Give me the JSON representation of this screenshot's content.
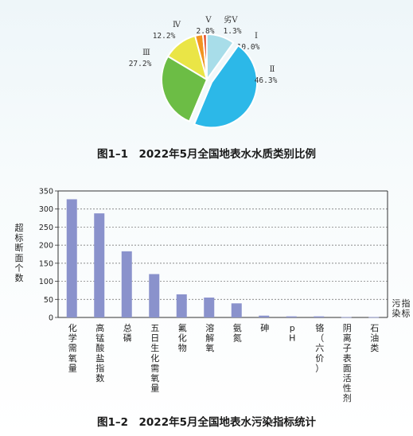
{
  "colors": {
    "pie": [
      "#a8dde9",
      "#2cb8e8",
      "#6cbd45",
      "#eae546",
      "#f29420",
      "#e2451f"
    ],
    "bar": "#8a92cc"
  },
  "chart_data": [
    {
      "type": "pie",
      "title": "图1–1　2022年5月全国地表水水质类别比例",
      "slices": [
        {
          "label": "Ⅰ",
          "value": 10.0,
          "value_label": "10.0%"
        },
        {
          "label": "Ⅱ",
          "value": 46.3,
          "value_label": "46.3%"
        },
        {
          "label": "Ⅲ",
          "value": 27.2,
          "value_label": "27.2%"
        },
        {
          "label": "Ⅳ",
          "value": 12.2,
          "value_label": "12.2%"
        },
        {
          "label": "Ⅴ",
          "value": 2.8,
          "value_label": "2.8%"
        },
        {
          "label": "劣Ⅴ",
          "value": 1.3,
          "value_label": "1.3%"
        }
      ]
    },
    {
      "type": "bar",
      "title": "图1–2　2022年5月全国地表水污染指标统计",
      "ylabel": "超标断面个数",
      "xlabel": "污染指标",
      "ylim": [
        0,
        350
      ],
      "yticks": [
        0,
        50,
        100,
        150,
        200,
        250,
        300,
        350
      ],
      "grid": true,
      "categories": [
        "化学需氧量",
        "高锰酸盐指数",
        "总磷",
        "五日生化需氧量",
        "氟化物",
        "溶解氧",
        "氨氮",
        "砷",
        "pH",
        "铬（六价）",
        "阴离子表面活性剂",
        "石油类"
      ],
      "values": [
        327,
        288,
        183,
        120,
        64,
        55,
        39,
        5,
        3,
        3,
        1,
        1
      ]
    }
  ]
}
